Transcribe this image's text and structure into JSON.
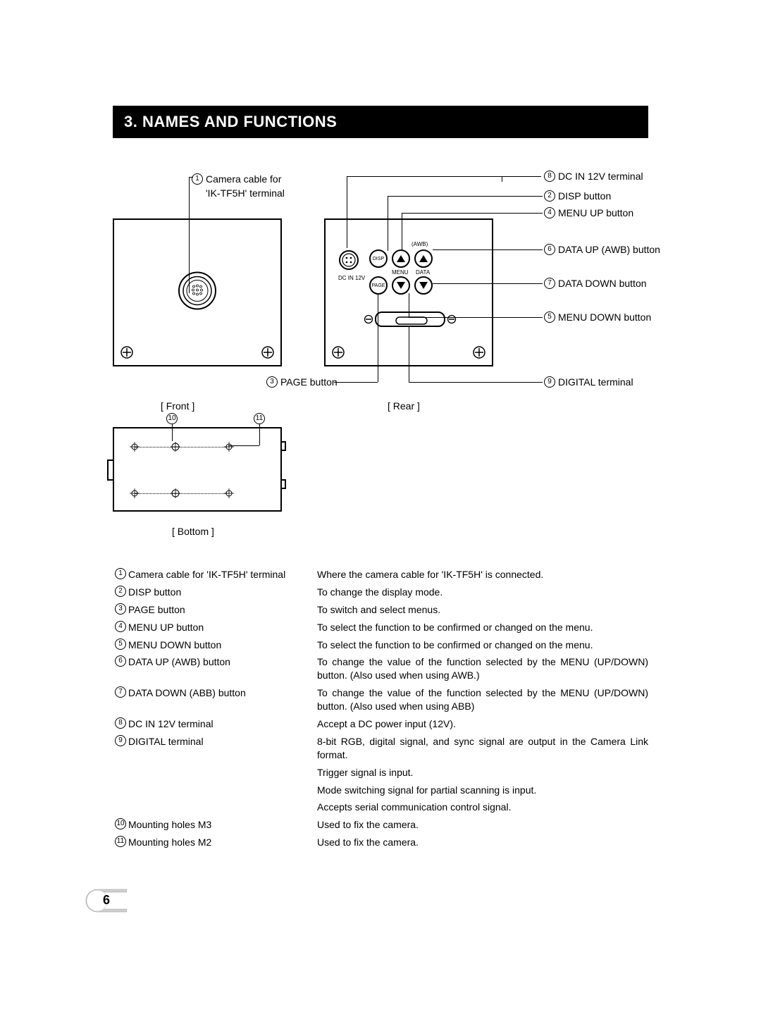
{
  "section_title": "3.  NAMES AND FUNCTIONS",
  "callouts": {
    "c1": "Camera cable for 'IK-TF5H' terminal",
    "c1_line1": "Camera cable for",
    "c1_line2": "'IK-TF5H' terminal",
    "c2": "DISP button",
    "c3": "PAGE button",
    "c4": "MENU UP button",
    "c5": "MENU DOWN button",
    "c6": "DATA UP (AWB) button",
    "c7": "DATA DOWN button",
    "c8": "DC IN 12V terminal",
    "c9": "DIGITAL terminal"
  },
  "view_labels": {
    "front": "[ Front ]",
    "rear": "[ Rear ]",
    "bottom": "[ Bottom ]"
  },
  "rear_panel_text": {
    "awb": "(AWB)",
    "menu": "MENU",
    "data": "DATA",
    "dc": "DC IN 12V",
    "disp": "DISP",
    "page": "PAGE"
  },
  "descriptions": [
    {
      "num": "1",
      "name": "Camera cable for 'IK-TF5H' terminal",
      "text": "Where the camera cable for 'IK-TF5H' is connected."
    },
    {
      "num": "2",
      "name": "DISP button",
      "text": "To change the display mode."
    },
    {
      "num": "3",
      "name": "PAGE button",
      "text": "To switch and select menus."
    },
    {
      "num": "4",
      "name": "MENU UP button",
      "text": "To select the function to be confirmed or changed on the menu."
    },
    {
      "num": "5",
      "name": "MENU DOWN button",
      "text": "To select the function to be confirmed or changed on the menu."
    },
    {
      "num": "6",
      "name": "DATA UP (AWB) button",
      "text": "To change the value of the function selected by the MENU (UP/DOWN) button. (Also used when using AWB.)"
    },
    {
      "num": "7",
      "name": "DATA DOWN (ABB) button",
      "text": "To change the value of the function selected by the MENU (UP/DOWN) button. (Also used when using ABB)"
    },
    {
      "num": "8",
      "name": "DC IN 12V terminal",
      "text": "Accept a DC power input (12V)."
    },
    {
      "num": "9",
      "name": "DIGITAL terminal",
      "text": "8-bit RGB, digital signal, and sync signal are output in the Camera Link format."
    },
    {
      "num": "",
      "name": "",
      "text": "Trigger signal is input."
    },
    {
      "num": "",
      "name": "",
      "text": "Mode switching signal for partial scanning is input."
    },
    {
      "num": "",
      "name": "",
      "text": "Accepts serial communication control signal."
    },
    {
      "num": "10",
      "name": "Mounting holes M3",
      "text": "Used to fix the camera."
    },
    {
      "num": "11",
      "name": "Mounting holes M2",
      "text": "Used to fix the camera."
    }
  ],
  "page_number": "6",
  "colors": {
    "header_bg": "#000000",
    "header_fg": "#ffffff",
    "text": "#000000",
    "page_bg": "#ffffff",
    "badge_fill": "#d0d0d0"
  },
  "typography": {
    "body_fontsize": 14,
    "header_fontsize": 22
  }
}
